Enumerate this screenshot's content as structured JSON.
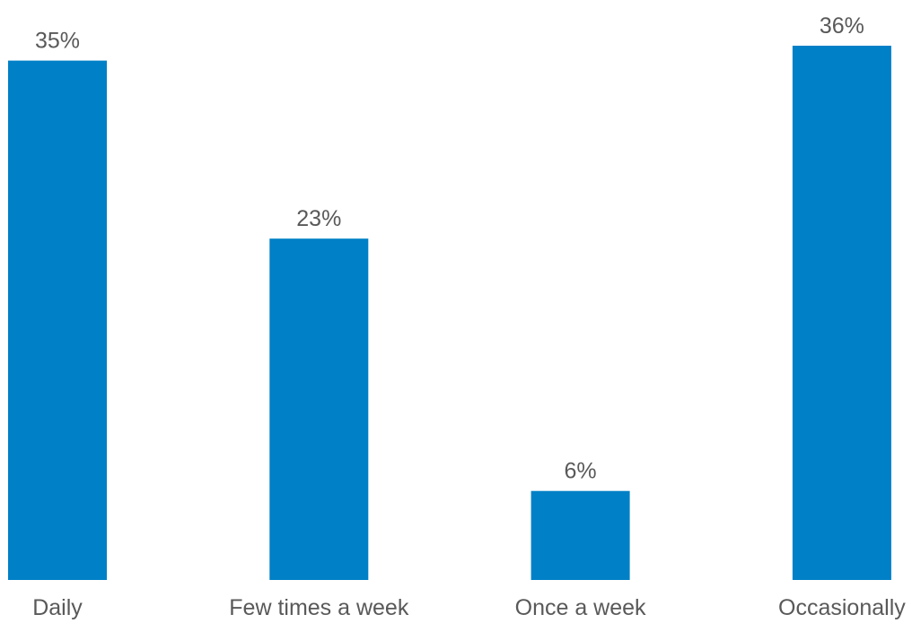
{
  "chart_data": {
    "type": "bar",
    "categories": [
      "Daily",
      "Few times a week",
      "Once a week",
      "Occasionally"
    ],
    "values": [
      35,
      23,
      6,
      36
    ],
    "data_labels": [
      "35%",
      "23%",
      "6%",
      "36%"
    ],
    "title": "",
    "xlabel": "",
    "ylabel": "",
    "unit": "%",
    "ylim": [
      0,
      36
    ],
    "grid": false,
    "legend": "none",
    "bar_color": "#0080C6"
  }
}
